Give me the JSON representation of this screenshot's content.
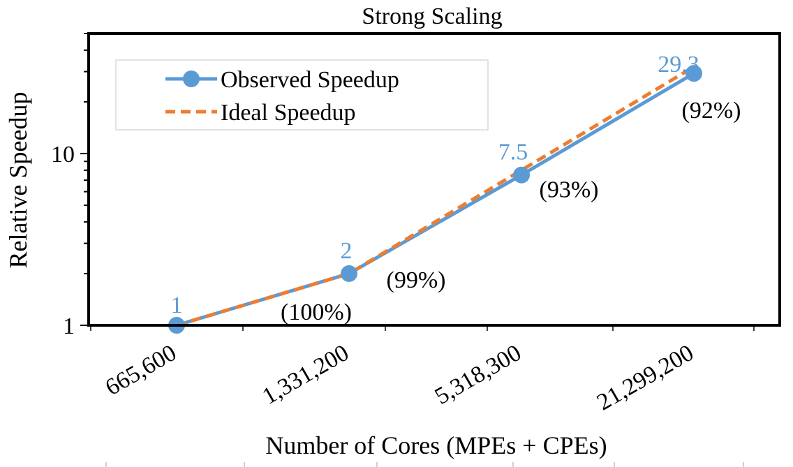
{
  "chart_data": {
    "type": "line",
    "title": "Strong Scaling",
    "xlabel": "Number of Cores (MPEs + CPEs)",
    "ylabel": "Relative Speedup",
    "yscale": "log",
    "ylim": [
      1,
      50
    ],
    "yticks": [
      {
        "value": 1,
        "label": "1"
      },
      {
        "value": 10,
        "label": "10"
      }
    ],
    "categories": [
      "665,600",
      "1,331,200",
      "5,318,300",
      "21,299,200"
    ],
    "series": [
      {
        "name": "Observed Speedup",
        "style": "solid",
        "marker": "circle",
        "color": "#5B9BD5",
        "values": [
          1,
          2,
          7.5,
          29.3
        ],
        "labels": [
          "1",
          "2",
          "7.5",
          "29.3"
        ]
      },
      {
        "name": "Ideal Speedup",
        "style": "dashed",
        "marker": "none",
        "color": "#ED7D31",
        "values": [
          1,
          2,
          8,
          32
        ]
      }
    ],
    "efficiency_labels": [
      "(100%)",
      "(99%)",
      "(93%)",
      "(92%)"
    ],
    "legend_position": "top-left",
    "grid": false
  }
}
